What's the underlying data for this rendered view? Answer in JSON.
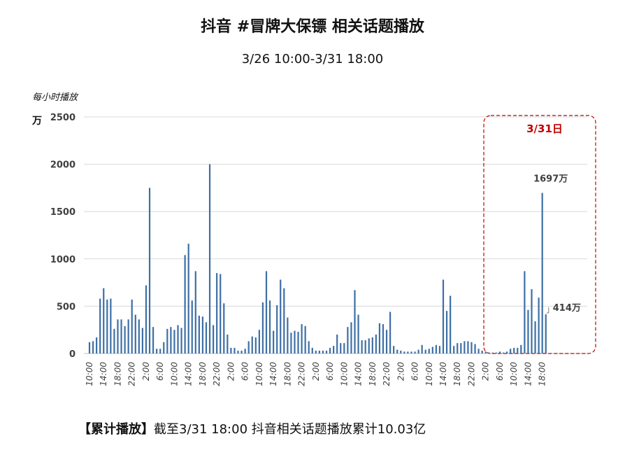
{
  "chart_data": {
    "type": "bar",
    "title": "抖音 #冒牌大保镖  相关话题播放",
    "subtitle": "3/26 10:00-3/31 18:00",
    "ylabel": "每小时播放",
    "unit": "万",
    "ylim": [
      0,
      2500
    ],
    "yticks": [
      0,
      500,
      1000,
      1500,
      2000,
      2500
    ],
    "grid": true,
    "color": "#3d6fa5",
    "highlight_label": "3/31日",
    "highlight_color": "#c00000",
    "annotations": [
      {
        "label": "1697万",
        "value": 1697
      },
      {
        "label": "414万",
        "value": 414
      }
    ],
    "x_tick_labels": [
      "10:00",
      "14:00",
      "18:00",
      "22:00",
      "2:00",
      "6:00",
      "10:00",
      "14:00",
      "18:00",
      "22:00",
      "2:00",
      "6:00",
      "10:00",
      "14:00",
      "18:00",
      "22:00",
      "2:00",
      "6:00",
      "10:00",
      "14:00",
      "18:00",
      "22:00",
      "2:00",
      "6:00",
      "10:00",
      "14:00",
      "18:00",
      "22:00",
      "2:00",
      "6:00",
      "10:00",
      "14:00",
      "18:00"
    ],
    "values": [
      120,
      130,
      170,
      580,
      690,
      570,
      580,
      260,
      360,
      360,
      290,
      360,
      570,
      410,
      360,
      270,
      720,
      1750,
      280,
      50,
      50,
      120,
      260,
      280,
      250,
      300,
      270,
      1040,
      1160,
      560,
      870,
      400,
      390,
      330,
      2000,
      300,
      850,
      840,
      530,
      200,
      60,
      60,
      30,
      30,
      50,
      130,
      180,
      170,
      250,
      540,
      870,
      560,
      240,
      510,
      780,
      690,
      380,
      220,
      240,
      230,
      310,
      290,
      130,
      60,
      30,
      30,
      30,
      30,
      60,
      80,
      200,
      110,
      110,
      280,
      330,
      670,
      410,
      140,
      140,
      160,
      170,
      200,
      320,
      310,
      250,
      440,
      80,
      40,
      30,
      20,
      20,
      20,
      20,
      40,
      90,
      40,
      50,
      70,
      90,
      80,
      780,
      450,
      610,
      80,
      110,
      110,
      130,
      130,
      120,
      100,
      50,
      30,
      20,
      10,
      10,
      10,
      20,
      10,
      20,
      50,
      60,
      60,
      90,
      870,
      460,
      680,
      340,
      590,
      1697,
      414
    ]
  },
  "footer": {
    "bold_part": "【累计播放】",
    "text": "截至3/31 18:00  抖音相关话题播放累计10.03亿"
  }
}
